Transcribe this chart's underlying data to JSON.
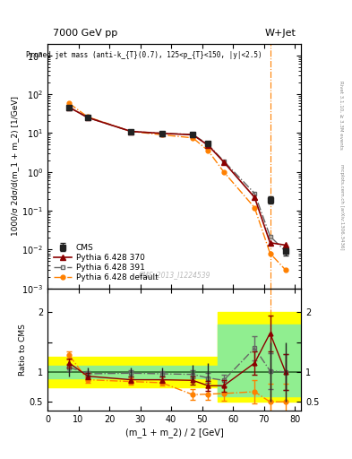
{
  "title_left": "7000 GeV pp",
  "title_right": "W+Jet",
  "annotation": "Pruned jet mass (anti-k_{T}(0.7), 125<p_{T}<150, |y|<2.5)",
  "watermark": "CMS_2013_I1224539",
  "right_label1": "Rivet 3.1.10, ≥ 3.3M events",
  "right_label2": "mcplots.cern.ch [arXiv:1306.3436]",
  "ylabel_main": "1000/σ 2dσ/d(m_1 + m_2) [1/GeV]",
  "ylabel_ratio": "Ratio to CMS",
  "xlabel": "(m_1 + m_2) / 2 [GeV]",
  "xlim": [
    0,
    82
  ],
  "ylim_main": [
    0.001,
    2000
  ],
  "ylim_ratio": [
    0.35,
    2.4
  ],
  "cms_x": [
    7,
    13,
    27,
    37,
    47,
    52,
    72,
    77
  ],
  "cms_y": [
    46,
    25,
    11,
    9.8,
    9.2,
    5.5,
    0.19,
    0.009
  ],
  "cms_yerr_lo": [
    3,
    2,
    1,
    0.8,
    0.9,
    0.6,
    0.04,
    0.002
  ],
  "cms_yerr_hi": [
    3,
    2,
    1,
    0.8,
    0.9,
    0.6,
    0.04,
    0.002
  ],
  "py370_x": [
    7,
    13,
    27,
    37,
    47,
    52,
    57,
    67,
    72,
    77
  ],
  "py370_y": [
    46,
    25,
    11,
    9.8,
    9.0,
    4.8,
    1.8,
    0.22,
    0.015,
    0.013
  ],
  "py391_x": [
    7,
    13,
    27,
    37,
    47,
    52,
    57,
    67,
    72,
    77
  ],
  "py391_y": [
    46,
    25,
    11,
    9.8,
    9.2,
    5.0,
    1.9,
    0.28,
    0.022,
    0.009
  ],
  "pydef_x": [
    7,
    13,
    27,
    37,
    47,
    52,
    57,
    67,
    72,
    77
  ],
  "pydef_y": [
    58,
    26,
    11,
    9.0,
    7.5,
    3.5,
    1.0,
    0.12,
    0.008,
    0.003
  ],
  "ratio_370_x": [
    7,
    13,
    27,
    37,
    47,
    52,
    57,
    67,
    72,
    77
  ],
  "ratio_370_y": [
    1.15,
    0.93,
    0.87,
    0.87,
    0.86,
    0.77,
    0.77,
    1.15,
    1.65,
    1.0
  ],
  "ratio_370_yerr": [
    0.07,
    0.05,
    0.05,
    0.05,
    0.07,
    0.08,
    0.1,
    0.2,
    0.3,
    0.3
  ],
  "ratio_391_x": [
    7,
    13,
    27,
    37,
    47,
    52,
    57,
    67,
    72,
    77
  ],
  "ratio_391_y": [
    1.08,
    0.97,
    0.98,
    0.97,
    0.96,
    0.9,
    0.86,
    1.4,
    1.02,
    1.0
  ],
  "ratio_391_yerr": [
    0.06,
    0.05,
    0.05,
    0.05,
    0.07,
    0.08,
    0.1,
    0.2,
    0.3,
    0.3
  ],
  "ratio_def_x": [
    7,
    13,
    27,
    37,
    47,
    52,
    57,
    67,
    72,
    77
  ],
  "ratio_def_y": [
    1.28,
    0.87,
    0.84,
    0.82,
    0.62,
    0.63,
    0.64,
    0.67,
    0.5,
    0.5
  ],
  "ratio_def_yerr": [
    0.07,
    0.05,
    0.05,
    0.05,
    0.09,
    0.1,
    0.12,
    0.2,
    0.3,
    0.3
  ],
  "ratio_cms_x": [
    7,
    13,
    27,
    37,
    47,
    52,
    72,
    77
  ],
  "ratio_cms_yerr": [
    0.07,
    0.07,
    0.07,
    0.07,
    0.12,
    0.15,
    0.5,
    0.5
  ],
  "vline_x": 72,
  "color_cms": "#222222",
  "color_370": "#8b0000",
  "color_391": "#666666",
  "color_def": "#ff8000",
  "color_yellow": "#ffff00",
  "color_green": "#90ee90"
}
